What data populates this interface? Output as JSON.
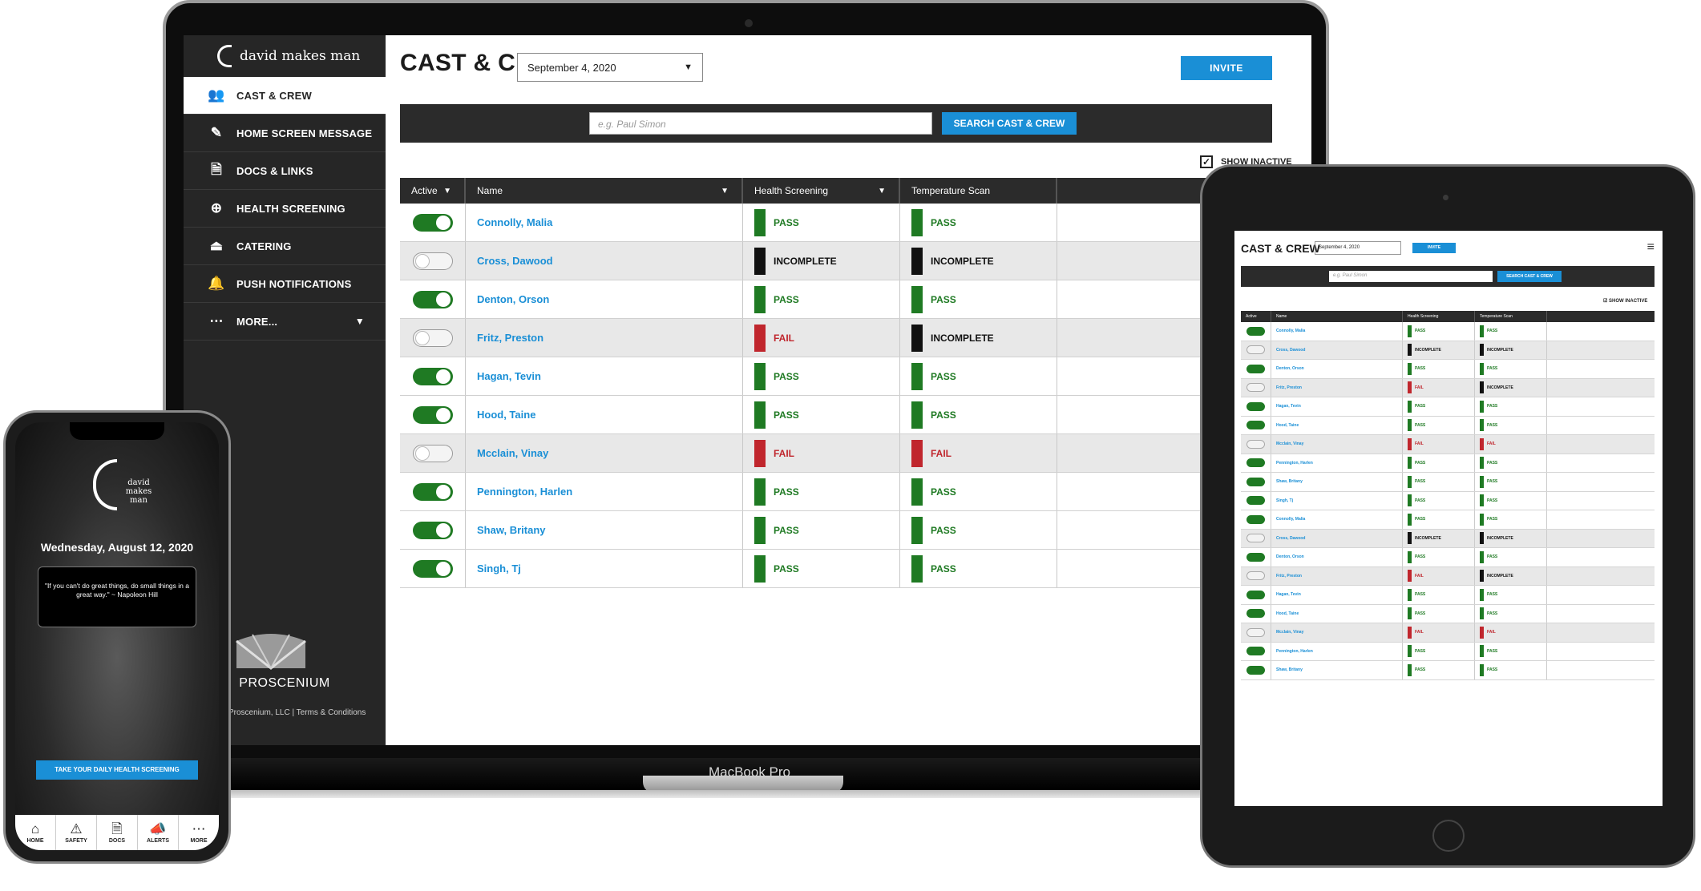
{
  "laptop": {
    "brand_name": "david makes man",
    "device_label": "MacBook Pro",
    "nav": [
      {
        "label": "CAST & CREW",
        "icon": "users-icon",
        "glyph": "👥"
      },
      {
        "label": "HOME SCREEN MESSAGE",
        "icon": "edit-icon",
        "glyph": "✎"
      },
      {
        "label": "DOCS & LINKS",
        "icon": "document-icon",
        "glyph": "🗎"
      },
      {
        "label": "HEALTH SCREENING",
        "icon": "plus-circle-icon",
        "glyph": "⊕"
      },
      {
        "label": "CATERING",
        "icon": "cloche-icon",
        "glyph": "⏏"
      },
      {
        "label": "PUSH NOTIFICATIONS",
        "icon": "bell-icon",
        "glyph": "🔔"
      },
      {
        "label": "MORE...",
        "icon": "more-icon",
        "glyph": "⋯"
      }
    ],
    "footer_brand": "PROSCENIUM",
    "footer_text": "Proscenium, LLC  |  Terms & Conditions",
    "page_title": "CAST & CREW",
    "date_value": "September 4, 2020",
    "invite_label": "INVITE",
    "search_placeholder": "e.g. Paul Simon",
    "search_button": "SEARCH CAST & CREW",
    "show_inactive": "SHOW INACTIVE",
    "columns": [
      "Active",
      "Name",
      "Health Screening",
      "Temperature Scan"
    ],
    "rows": [
      {
        "active": true,
        "name": "Connolly, Malia",
        "health": "PASS",
        "temp": "PASS"
      },
      {
        "active": false,
        "name": "Cross, Dawood",
        "health": "INCOMPLETE",
        "temp": "INCOMPLETE"
      },
      {
        "active": true,
        "name": "Denton, Orson",
        "health": "PASS",
        "temp": "PASS"
      },
      {
        "active": false,
        "name": "Fritz, Preston",
        "health": "FAIL",
        "temp": "INCOMPLETE"
      },
      {
        "active": true,
        "name": "Hagan, Tevin",
        "health": "PASS",
        "temp": "PASS"
      },
      {
        "active": true,
        "name": "Hood, Taine",
        "health": "PASS",
        "temp": "PASS"
      },
      {
        "active": false,
        "name": "Mcclain, Vinay",
        "health": "FAIL",
        "temp": "FAIL"
      },
      {
        "active": true,
        "name": "Pennington, Harlen",
        "health": "PASS",
        "temp": "PASS"
      },
      {
        "active": true,
        "name": "Shaw, Britany",
        "health": "PASS",
        "temp": "PASS"
      },
      {
        "active": true,
        "name": "Singh, Tj",
        "health": "PASS",
        "temp": "PASS"
      }
    ]
  },
  "tablet": {
    "page_title": "CAST & CREW",
    "date_value": "September 4, 2020",
    "invite_label": "INVITE",
    "search_placeholder": "e.g. Paul Simon",
    "search_button": "SEARCH CAST & CREW",
    "show_inactive": "SHOW INACTIVE",
    "columns": [
      "Active",
      "Name",
      "Health Screening",
      "Temperature Scan"
    ],
    "rows": [
      {
        "active": true,
        "name": "Connolly, Malia",
        "health": "PASS",
        "temp": "PASS"
      },
      {
        "active": false,
        "name": "Cross, Dawood",
        "health": "INCOMPLETE",
        "temp": "INCOMPLETE"
      },
      {
        "active": true,
        "name": "Denton, Orson",
        "health": "PASS",
        "temp": "PASS"
      },
      {
        "active": false,
        "name": "Fritz, Preston",
        "health": "FAIL",
        "temp": "INCOMPLETE"
      },
      {
        "active": true,
        "name": "Hagan, Tevin",
        "health": "PASS",
        "temp": "PASS"
      },
      {
        "active": true,
        "name": "Hood, Taine",
        "health": "PASS",
        "temp": "PASS"
      },
      {
        "active": false,
        "name": "Mcclain, Vinay",
        "health": "FAIL",
        "temp": "FAIL"
      },
      {
        "active": true,
        "name": "Pennington, Harlen",
        "health": "PASS",
        "temp": "PASS"
      },
      {
        "active": true,
        "name": "Shaw, Britany",
        "health": "PASS",
        "temp": "PASS"
      },
      {
        "active": true,
        "name": "Singh, Tj",
        "health": "PASS",
        "temp": "PASS"
      },
      {
        "active": true,
        "name": "Connolly, Malia",
        "health": "PASS",
        "temp": "PASS"
      },
      {
        "active": false,
        "name": "Cross, Dawood",
        "health": "INCOMPLETE",
        "temp": "INCOMPLETE"
      },
      {
        "active": true,
        "name": "Denton, Orson",
        "health": "PASS",
        "temp": "PASS"
      },
      {
        "active": false,
        "name": "Fritz, Preston",
        "health": "FAIL",
        "temp": "INCOMPLETE"
      },
      {
        "active": true,
        "name": "Hagan, Tevin",
        "health": "PASS",
        "temp": "PASS"
      },
      {
        "active": true,
        "name": "Hood, Taine",
        "health": "PASS",
        "temp": "PASS"
      },
      {
        "active": false,
        "name": "Mcclain, Vinay",
        "health": "FAIL",
        "temp": "FAIL"
      },
      {
        "active": true,
        "name": "Pennington, Harlen",
        "health": "PASS",
        "temp": "PASS"
      },
      {
        "active": true,
        "name": "Shaw, Britany",
        "health": "PASS",
        "temp": "PASS"
      }
    ]
  },
  "phone": {
    "logo_text": "david makes man",
    "date": "Wednesday, August 12, 2020",
    "quote": "\"If you can't do great things, do small things in a great way.\" ~ Napoleon Hill",
    "cta": "TAKE YOUR DAILY HEALTH SCREENING",
    "tabs": [
      {
        "label": "HOME",
        "icon": "home-icon",
        "glyph": "⌂"
      },
      {
        "label": "SAFETY",
        "icon": "warning-icon",
        "glyph": "⚠"
      },
      {
        "label": "DOCS",
        "icon": "document-icon",
        "glyph": "🗎"
      },
      {
        "label": "ALERTS",
        "icon": "megaphone-icon",
        "glyph": "📣"
      },
      {
        "label": "MORE",
        "icon": "more-icon",
        "glyph": "⋯"
      }
    ]
  },
  "colors": {
    "accent": "#1a8fd6",
    "pass": "#1f7a23",
    "fail": "#c0262d",
    "incomplete": "#111111",
    "dark": "#2b2b2b"
  }
}
